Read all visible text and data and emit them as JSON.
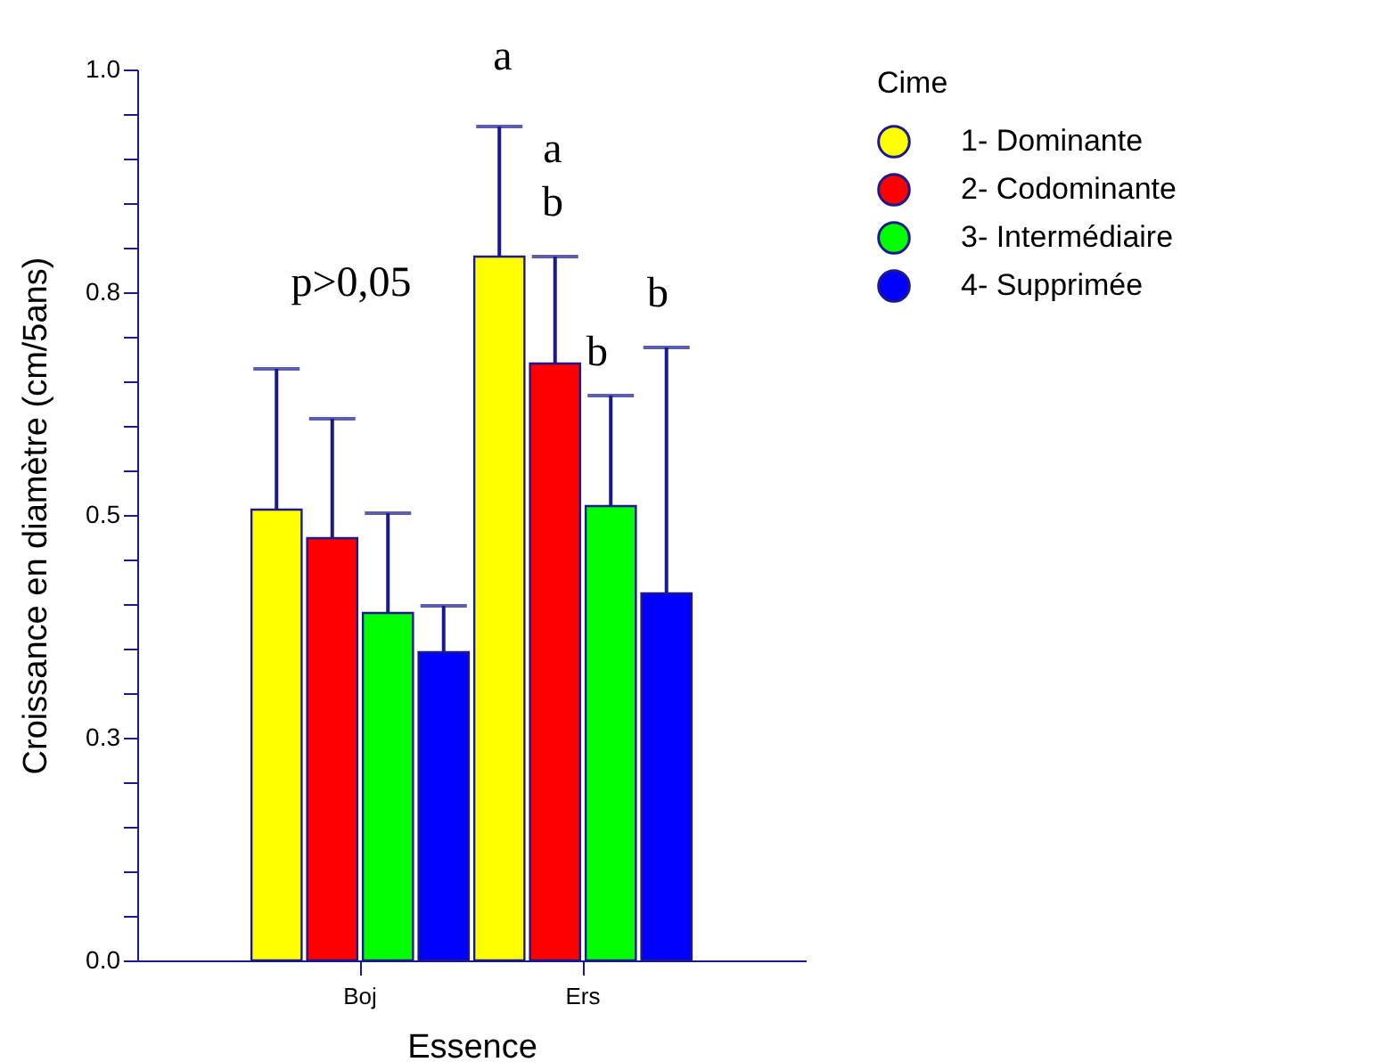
{
  "chart_data": {
    "type": "bar",
    "xlabel": "Essence",
    "ylabel": "Croissance en diamètre (cm/5ans)",
    "legend_title": "Cime",
    "categories": [
      "Boj",
      "Ers"
    ],
    "series": [
      {
        "name": "1- Dominante",
        "color": "#ffff00",
        "values": [
          0.506,
          0.79
        ],
        "errors": [
          [
            0.506,
            0.664
          ],
          [
            0.79,
            0.936
          ]
        ]
      },
      {
        "name": "2- Codominante",
        "color": "#ff0000",
        "values": [
          0.474,
          0.67
        ],
        "errors": [
          [
            0.474,
            0.608
          ],
          [
            0.67,
            0.79
          ]
        ]
      },
      {
        "name": "3- Intermédiaire",
        "color": "#00ff00",
        "values": [
          0.39,
          0.51
        ],
        "errors": [
          [
            0.39,
            0.502
          ],
          [
            0.51,
            0.634
          ]
        ]
      },
      {
        "name": "4- Supprimée",
        "color": "#0000ff",
        "values": [
          0.346,
          0.412
        ],
        "errors": [
          [
            0.346,
            0.398
          ],
          [
            0.412,
            0.688
          ]
        ]
      }
    ],
    "ylim": [
      0,
      1.0
    ],
    "yticks": [
      {
        "value": 0,
        "label": "0.0"
      },
      {
        "value": 0.05,
        "label": null
      },
      {
        "value": 0.1,
        "label": null
      },
      {
        "value": 0.15,
        "label": null
      },
      {
        "value": 0.2,
        "label": null
      },
      {
        "value": 0.25,
        "label": "0.3"
      },
      {
        "value": 0.3,
        "label": null
      },
      {
        "value": 0.35,
        "label": null
      },
      {
        "value": 0.4,
        "label": null
      },
      {
        "value": 0.45,
        "label": null
      },
      {
        "value": 0.5,
        "label": "0.5"
      },
      {
        "value": 0.55,
        "label": null
      },
      {
        "value": 0.6,
        "label": null
      },
      {
        "value": 0.65,
        "label": null
      },
      {
        "value": 0.7,
        "label": null
      },
      {
        "value": 0.75,
        "label": "0.8"
      },
      {
        "value": 0.8,
        "label": null
      },
      {
        "value": 0.85,
        "label": null
      },
      {
        "value": 0.9,
        "label": null
      },
      {
        "value": 0.95,
        "label": null
      },
      {
        "value": 1.0,
        "label": "1.0"
      }
    ],
    "annotations": [
      "p>0,05",
      "a",
      "a",
      "b",
      "b",
      "b"
    ],
    "grid": false,
    "legend": "top right"
  }
}
